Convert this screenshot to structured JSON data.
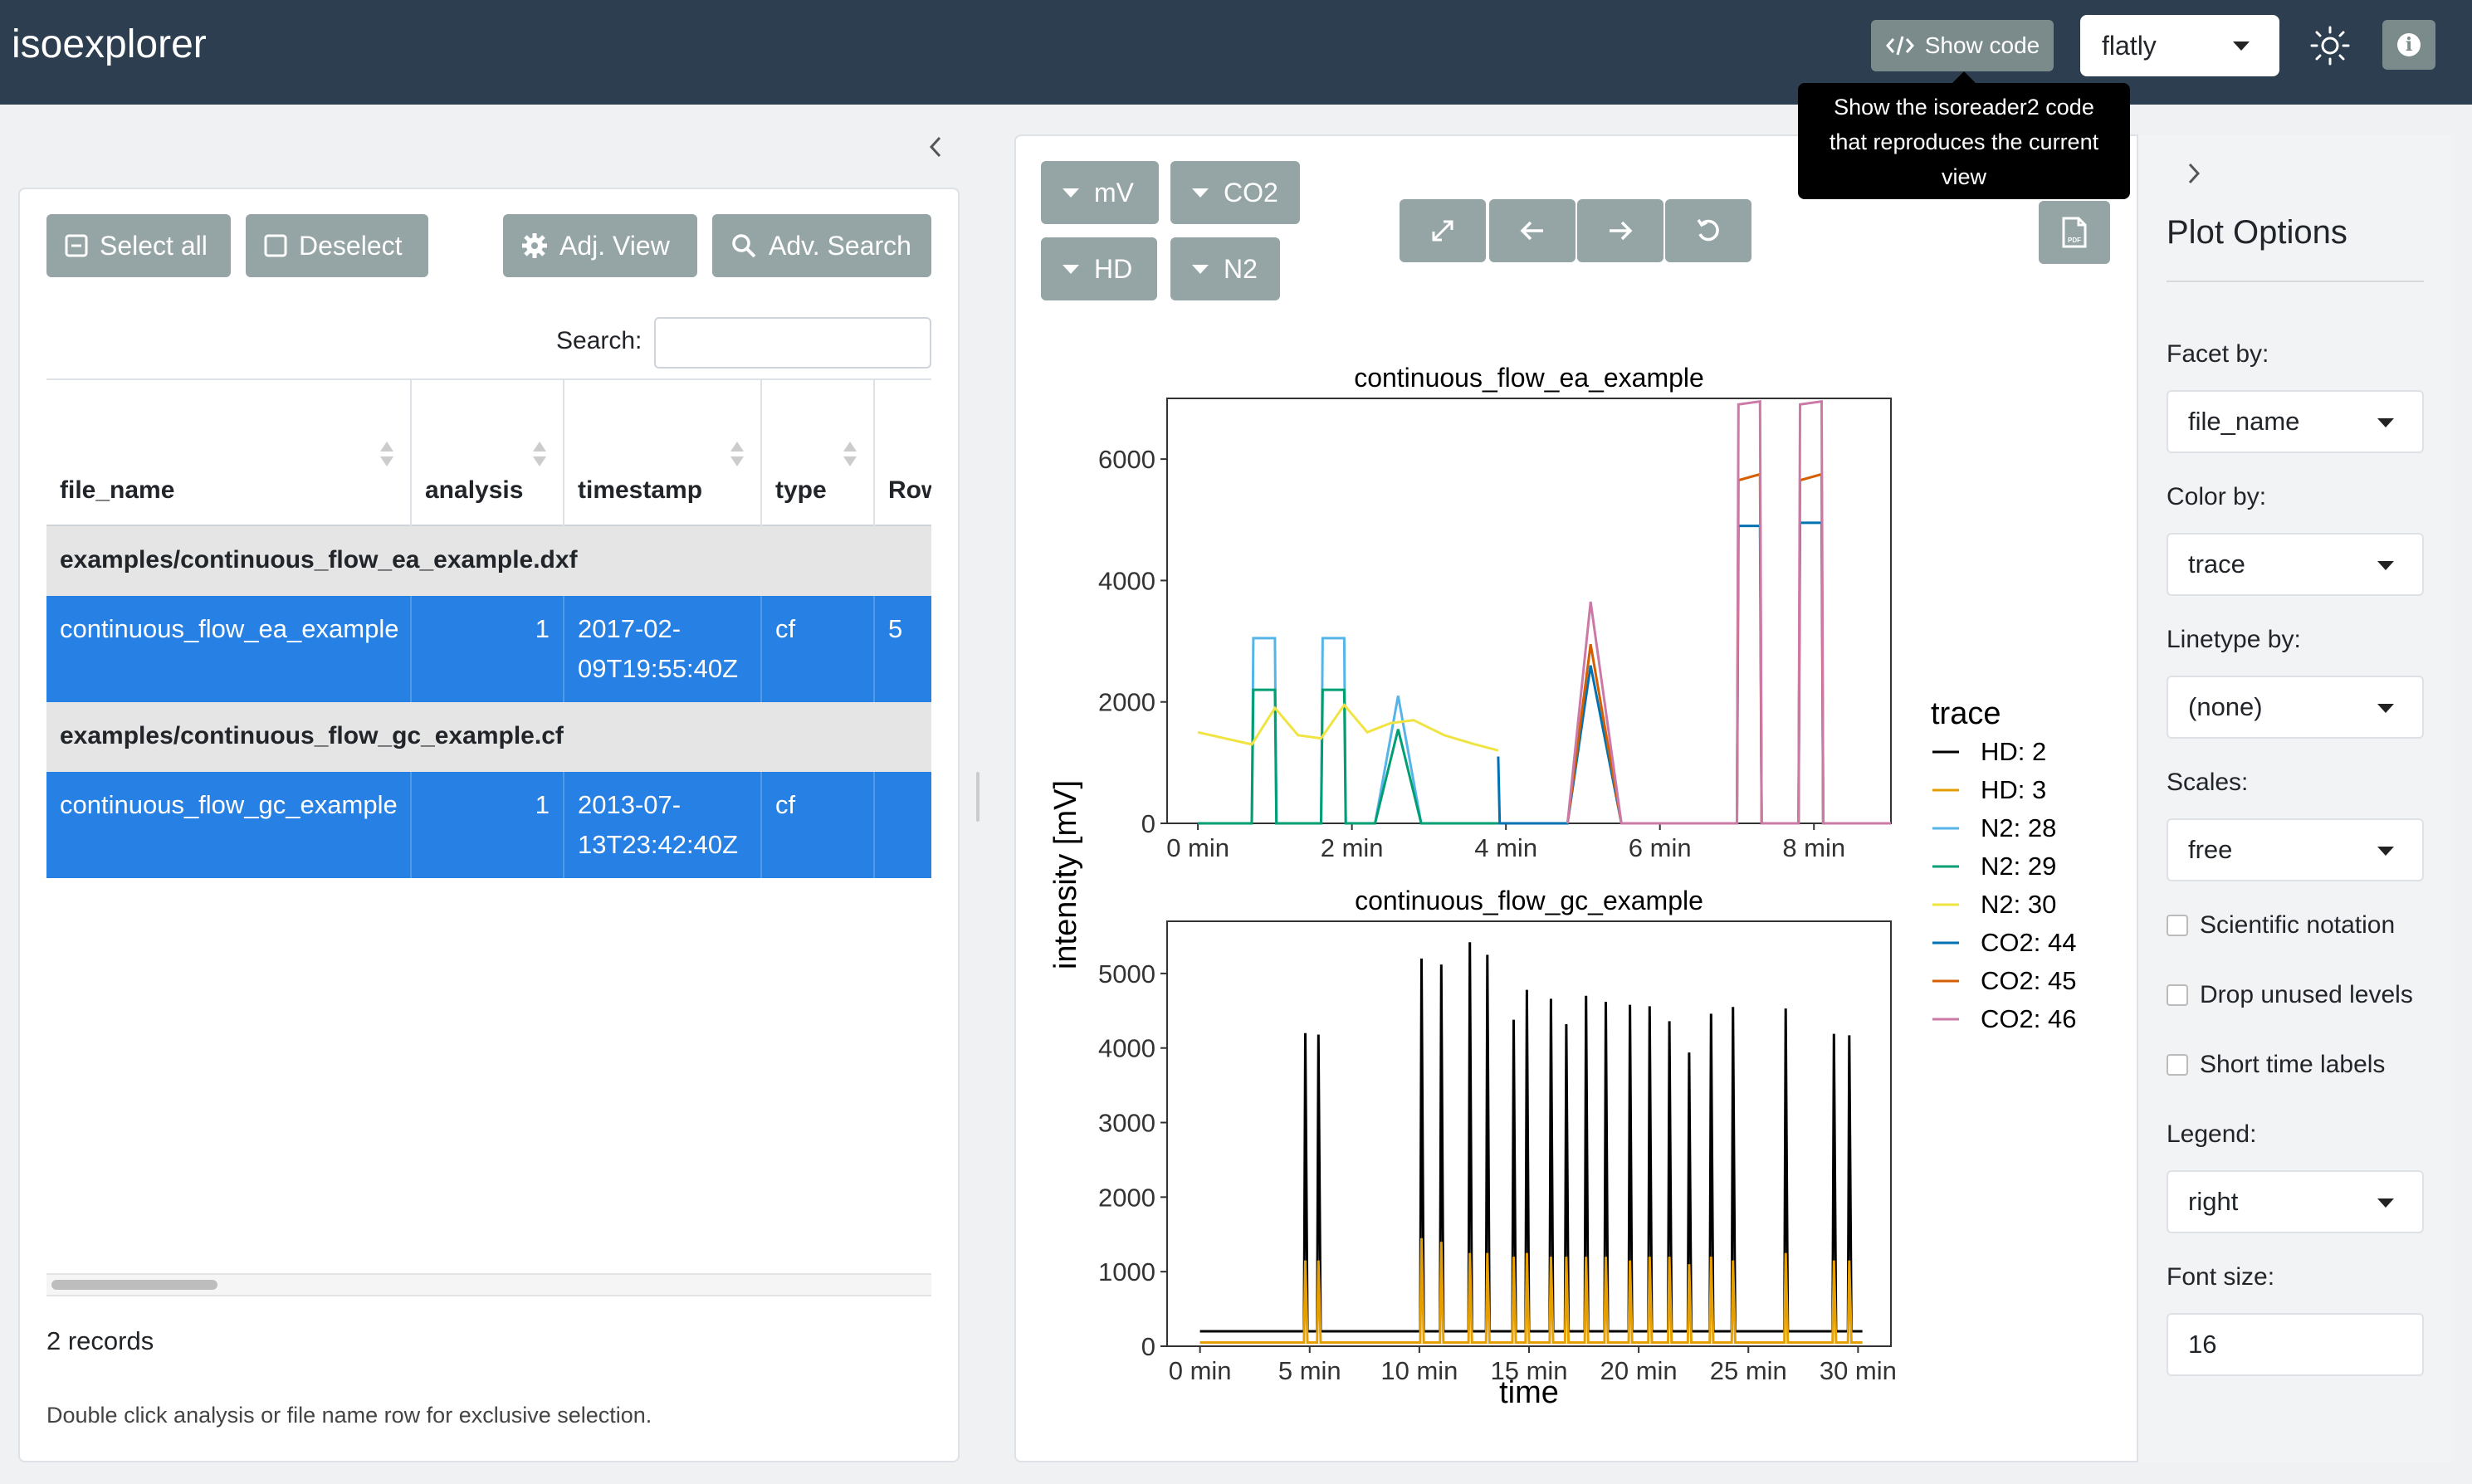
{
  "app": {
    "title": "isoexplorer",
    "show_code_label": "Show code",
    "theme_value": "flatly",
    "tooltip": [
      "Show the isoreader2 code",
      "that reproduces the current",
      "view"
    ]
  },
  "left": {
    "buttons": {
      "select_all": "Select all",
      "deselect": "Deselect",
      "adj_view": "Adj. View",
      "adv_search": "Adv. Search"
    },
    "search_label": "Search:",
    "search_value": "",
    "table": {
      "columns": [
        "file_name",
        "analysis",
        "timestamp",
        "type",
        "Row"
      ],
      "groups": [
        {
          "label": "examples/continuous_flow_ea_example.dxf",
          "rows": [
            {
              "file_name": "continuous_flow_ea_example",
              "analysis": "1",
              "timestamp_1": "2017-02-",
              "timestamp_2": "09T19:55:40Z",
              "type": "cf",
              "row": "5"
            }
          ]
        },
        {
          "label": "examples/continuous_flow_gc_example.cf",
          "rows": [
            {
              "file_name": "continuous_flow_gc_example",
              "analysis": "1",
              "timestamp_1": "2013-07-",
              "timestamp_2": "13T23:42:40Z",
              "type": "cf",
              "row": ""
            }
          ]
        }
      ]
    },
    "records": "2 records",
    "hint": "Double click analysis or file name row for exclusive selection."
  },
  "plot_controls": {
    "units": "mV",
    "co2": "CO2",
    "hd": "HD",
    "n2": "N2"
  },
  "options": {
    "title": "Plot Options",
    "facet_label": "Facet by:",
    "facet_value": "file_name",
    "color_label": "Color by:",
    "color_value": "trace",
    "linetype_label": "Linetype by:",
    "linetype_value": "(none)",
    "scales_label": "Scales:",
    "scales_value": "free",
    "chk_scientific": "Scientific notation",
    "chk_drop": "Drop unused levels",
    "chk_short": "Short time labels",
    "legend_label": "Legend:",
    "legend_value": "right",
    "font_label": "Font size:",
    "font_value": "16"
  },
  "chart_data": [
    {
      "type": "line",
      "title": "continuous_flow_ea_example",
      "xlabel": "time",
      "ylabel": "intensity [mV]",
      "x_ticks": [
        "0 min",
        "2 min",
        "4 min",
        "6 min",
        "8 min"
      ],
      "y_ticks": [
        "0",
        "2000",
        "4000",
        "6000"
      ],
      "xlim": [
        -0.4,
        9.0
      ],
      "ylim": [
        0,
        7000
      ],
      "legend_title": "trace",
      "legend_position": "right",
      "series": [
        {
          "name": "HD: 2",
          "color": "#000000",
          "x": [],
          "y": []
        },
        {
          "name": "HD: 3",
          "color": "#e69f00",
          "x": [],
          "y": []
        },
        {
          "name": "N2: 28",
          "color": "#56b4e9",
          "x": [
            0,
            0.7,
            0.72,
            1.0,
            1.02,
            1.6,
            1.62,
            1.9,
            1.92,
            2.3,
            2.6,
            2.9,
            3.2,
            3.9
          ],
          "y": [
            0,
            0,
            3050,
            3050,
            0,
            0,
            3050,
            3050,
            0,
            0,
            2100,
            0,
            0,
            0
          ]
        },
        {
          "name": "N2: 29",
          "color": "#009e73",
          "x": [
            0,
            0.7,
            0.72,
            1.0,
            1.02,
            1.6,
            1.62,
            1.9,
            1.92,
            2.3,
            2.6,
            2.9,
            3.2,
            3.9
          ],
          "y": [
            0,
            0,
            2200,
            2200,
            0,
            0,
            2200,
            2200,
            0,
            0,
            1550,
            0,
            0,
            0
          ]
        },
        {
          "name": "N2: 30",
          "color": "#f0e442",
          "x": [
            0,
            0.7,
            1.0,
            1.3,
            1.6,
            1.9,
            2.2,
            2.5,
            2.8,
            3.2,
            3.6,
            3.9
          ],
          "y": [
            1500,
            1300,
            1900,
            1450,
            1400,
            1950,
            1500,
            1650,
            1700,
            1450,
            1300,
            1200
          ]
        },
        {
          "name": "CO2: 44",
          "color": "#0072b2",
          "x": [
            3.9,
            3.92,
            4.8,
            5.1,
            5.5,
            7.0,
            7.02,
            7.3,
            7.32,
            7.8,
            7.82,
            8.1,
            8.12,
            9.0
          ],
          "y": [
            1100,
            0,
            0,
            2600,
            0,
            0,
            4900,
            4900,
            0,
            0,
            4950,
            4950,
            0,
            0
          ]
        },
        {
          "name": "CO2: 45",
          "color": "#d55e00",
          "x": [
            4.8,
            5.1,
            5.5,
            7.0,
            7.02,
            7.3,
            7.32,
            7.8,
            7.82,
            8.1,
            8.12,
            9.0
          ],
          "y": [
            0,
            2950,
            0,
            0,
            5650,
            5750,
            0,
            0,
            5650,
            5750,
            0,
            0
          ]
        },
        {
          "name": "CO2: 46",
          "color": "#cc79a7",
          "x": [
            4.8,
            5.1,
            5.5,
            7.0,
            7.02,
            7.3,
            7.32,
            7.8,
            7.82,
            8.1,
            8.12,
            9.0
          ],
          "y": [
            0,
            3650,
            0,
            0,
            6900,
            6950,
            0,
            0,
            6900,
            6950,
            0,
            0
          ]
        }
      ]
    },
    {
      "type": "line",
      "title": "continuous_flow_gc_example",
      "xlabel": "time",
      "ylabel": "intensity [mV]",
      "x_ticks": [
        "0 min",
        "5 min",
        "10 min",
        "15 min",
        "20 min",
        "25 min",
        "30 min"
      ],
      "y_ticks": [
        "0",
        "1000",
        "2000",
        "3000",
        "4000",
        "5000"
      ],
      "xlim": [
        -1.5,
        31.5
      ],
      "ylim": [
        0,
        5700
      ],
      "series": [
        {
          "name": "HD: 2",
          "color": "#000000",
          "peaks_x": [
            4.8,
            5.4,
            10.1,
            11.0,
            12.3,
            13.1,
            14.3,
            14.9,
            16.0,
            16.7,
            17.6,
            18.5,
            19.6,
            20.5,
            21.4,
            22.3,
            23.3,
            24.3,
            26.7,
            28.9,
            29.6
          ],
          "peaks_y": [
            4200,
            4180,
            5200,
            5120,
            5420,
            5250,
            4380,
            4780,
            4660,
            4320,
            4700,
            4620,
            4580,
            4560,
            4360,
            3940,
            4460,
            4550,
            4530,
            4190,
            4170
          ],
          "baseline": 200
        },
        {
          "name": "HD: 3",
          "color": "#e69f00",
          "peaks_x": [
            4.8,
            5.4,
            10.1,
            11.0,
            12.3,
            13.1,
            14.3,
            14.9,
            16.0,
            16.7,
            17.6,
            18.5,
            19.6,
            20.5,
            21.4,
            22.3,
            23.3,
            24.3,
            26.7,
            28.9,
            29.6
          ],
          "peaks_y": [
            1150,
            1150,
            1450,
            1400,
            1250,
            1250,
            1200,
            1250,
            1200,
            1200,
            1200,
            1200,
            1150,
            1200,
            1200,
            1100,
            1200,
            1150,
            1250,
            1150,
            1150
          ],
          "baseline": 50
        }
      ]
    }
  ]
}
